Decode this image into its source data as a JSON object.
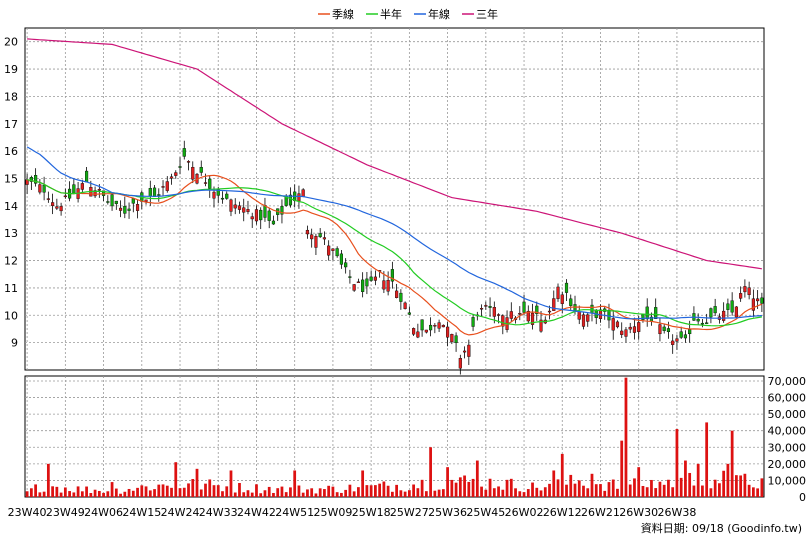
{
  "chart_data": {
    "type": "candlestick",
    "legend": [
      {
        "name": "季線",
        "color": "#e8501e"
      },
      {
        "name": "半年",
        "color": "#22cc22"
      },
      {
        "name": "年線",
        "color": "#2266dd"
      },
      {
        "name": "三年",
        "color": "#cc1477"
      }
    ],
    "price_axis": {
      "min": 8,
      "max": 20.5,
      "ticks": [
        9,
        10,
        11,
        12,
        13,
        14,
        15,
        16,
        17,
        18,
        19,
        20
      ]
    },
    "volume_axis": {
      "min": 0,
      "max": 73000,
      "ticks": [
        "0",
        "10,000",
        "20,000",
        "30,000",
        "40,000",
        "50,000",
        "60,000",
        "70,000"
      ]
    },
    "x_labels": [
      "23W40",
      "23W49",
      "24W06",
      "24W15",
      "24W24",
      "24W33",
      "24W42",
      "24W51",
      "25W09",
      "25W18",
      "25W27",
      "25W36",
      "25W45",
      "26W02",
      "26W12",
      "26W21",
      "26W30",
      "26W38"
    ],
    "close_anchors": [
      [
        0,
        14.9
      ],
      [
        4,
        14.6
      ],
      [
        7,
        14.0
      ],
      [
        10,
        14.3
      ],
      [
        14,
        14.9
      ],
      [
        17,
        14.5
      ],
      [
        20,
        14.0
      ],
      [
        23,
        13.8
      ],
      [
        26,
        14.2
      ],
      [
        30,
        14.3
      ],
      [
        34,
        15.0
      ],
      [
        37,
        15.8
      ],
      [
        40,
        15.3
      ],
      [
        44,
        14.6
      ],
      [
        47,
        14.2
      ],
      [
        51,
        13.9
      ],
      [
        54,
        13.7
      ],
      [
        58,
        13.3
      ],
      [
        61,
        14.0
      ],
      [
        65,
        14.5
      ],
      [
        66,
        13.2
      ],
      [
        68,
        13.0
      ],
      [
        71,
        12.6
      ],
      [
        74,
        11.8
      ],
      [
        77,
        11.2
      ],
      [
        80,
        10.9
      ],
      [
        83,
        11.5
      ],
      [
        86,
        11.2
      ],
      [
        89,
        10.4
      ],
      [
        91,
        9.6
      ],
      [
        94,
        9.4
      ],
      [
        97,
        9.9
      ],
      [
        100,
        9.2
      ],
      [
        102,
        8.5
      ],
      [
        104,
        8.9
      ],
      [
        106,
        10.1
      ],
      [
        108,
        10.2
      ],
      [
        111,
        10.1
      ],
      [
        114,
        10.0
      ],
      [
        116,
        10.0
      ],
      [
        119,
        10.1
      ],
      [
        121,
        9.8
      ],
      [
        123,
        10.2
      ],
      [
        125,
        11.0
      ],
      [
        127,
        10.8
      ],
      [
        129,
        10.2
      ],
      [
        132,
        9.9
      ],
      [
        135,
        10.1
      ],
      [
        138,
        9.8
      ],
      [
        141,
        9.4
      ],
      [
        144,
        9.8
      ],
      [
        147,
        9.9
      ],
      [
        150,
        9.3
      ],
      [
        153,
        9.1
      ],
      [
        155,
        9.0
      ],
      [
        157,
        9.9
      ],
      [
        160,
        9.8
      ],
      [
        163,
        10.0
      ],
      [
        166,
        10.1
      ],
      [
        169,
        11.0
      ],
      [
        171,
        10.7
      ],
      [
        173,
        10.3
      ]
    ],
    "volume_anchors": [
      [
        0,
        3000
      ],
      [
        4,
        8000
      ],
      [
        8,
        6000
      ],
      [
        12,
        5000
      ],
      [
        20,
        4000
      ],
      [
        30,
        7000
      ],
      [
        40,
        8000
      ],
      [
        50,
        6000
      ],
      [
        60,
        5000
      ],
      [
        70,
        5000
      ],
      [
        80,
        6000
      ],
      [
        90,
        8000
      ],
      [
        100,
        10000
      ],
      [
        110,
        9000
      ],
      [
        120,
        6000
      ],
      [
        130,
        10000
      ],
      [
        140,
        7000
      ],
      [
        150,
        9000
      ],
      [
        160,
        12000
      ],
      [
        173,
        9000
      ]
    ],
    "volume_spikes": [
      [
        5,
        20000
      ],
      [
        20,
        9000
      ],
      [
        35,
        21000
      ],
      [
        40,
        17000
      ],
      [
        48,
        16000
      ],
      [
        63,
        16000
      ],
      [
        79,
        16000
      ],
      [
        95,
        30000
      ],
      [
        99,
        18000
      ],
      [
        106,
        22000
      ],
      [
        124,
        16000
      ],
      [
        126,
        26000
      ],
      [
        133,
        14000
      ],
      [
        140,
        34000
      ],
      [
        141,
        72000
      ],
      [
        144,
        18000
      ],
      [
        153,
        41000
      ],
      [
        155,
        22000
      ],
      [
        158,
        20000
      ],
      [
        160,
        45000
      ],
      [
        165,
        20000
      ],
      [
        166,
        40000
      ],
      [
        168,
        13000
      ]
    ],
    "n_weeks": 174
  },
  "footer": {
    "source": "資料日期: 09/18  (Goodinfo.tw)"
  }
}
